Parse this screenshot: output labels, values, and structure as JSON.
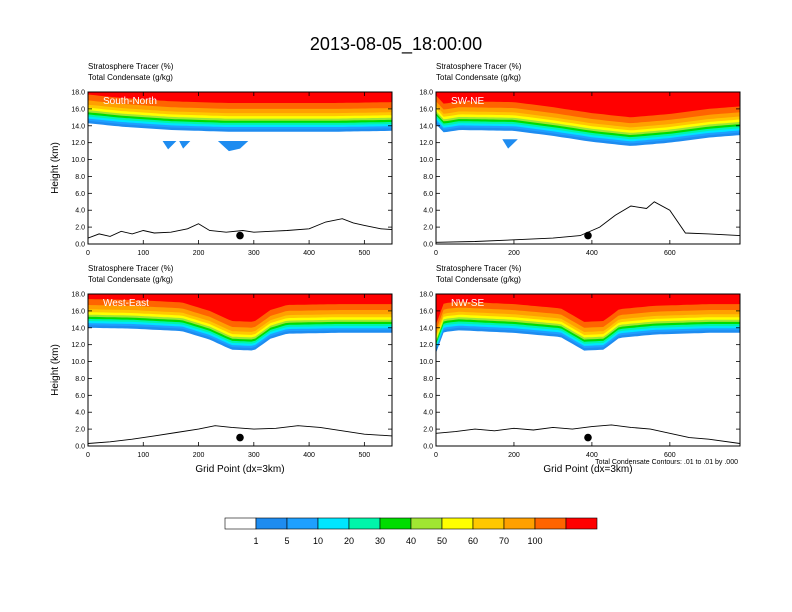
{
  "figure_title": "2013-08-05_18:00:00",
  "footnote": "Total Condensate Contours: .01 to .01 by .000",
  "colors": {
    "palette": [
      "#ffffff",
      "#1e8cf0",
      "#1ea0ff",
      "#00e6ff",
      "#00f5aa",
      "#00dc00",
      "#a0e632",
      "#ffff00",
      "#ffc800",
      "#ffa000",
      "#ff6400",
      "#ff0000"
    ]
  },
  "colorbar": {
    "labels": [
      "1",
      "5",
      "10",
      "20",
      "30",
      "40",
      "50",
      "60",
      "70",
      "100"
    ]
  },
  "chart_data": [
    {
      "type": "contour",
      "id": "p1",
      "header_line1": "Stratosphere Tracer   (%)",
      "header_line2": "Total Condensate   (g/kg)",
      "panel_label": "South-North",
      "ylabel": "Height (km)",
      "xlabel": "",
      "xlim": [
        0,
        550
      ],
      "ylim": [
        0,
        18
      ],
      "xticks": [
        "0",
        "100",
        "200",
        "300",
        "400",
        "500"
      ],
      "xtick_values": [
        0,
        100,
        200,
        300,
        400,
        500
      ],
      "yticks": [
        "0.0",
        "2.0",
        "4.0",
        "6.0",
        "8.0",
        "10.0",
        "12.0",
        "14.0",
        "16.0",
        "18.0"
      ],
      "tropopause_km": [
        [
          0,
          14.3
        ],
        [
          60,
          13.9
        ],
        [
          150,
          13.5
        ],
        [
          250,
          13.3
        ],
        [
          350,
          13.3
        ],
        [
          450,
          13.3
        ],
        [
          550,
          13.4
        ]
      ],
      "blue_patches": [
        [
          [
            235,
            12.2
          ],
          [
            255,
            11.0
          ],
          [
            275,
            11.3
          ],
          [
            290,
            12.2
          ]
        ],
        [
          [
            135,
            12.2
          ],
          [
            145,
            11.2
          ],
          [
            160,
            12.2
          ]
        ],
        [
          [
            165,
            12.2
          ],
          [
            172,
            11.3
          ],
          [
            185,
            12.2
          ]
        ]
      ],
      "terrain_km": [
        [
          0,
          0.7
        ],
        [
          20,
          1.2
        ],
        [
          40,
          0.9
        ],
        [
          60,
          1.5
        ],
        [
          80,
          1.2
        ],
        [
          100,
          1.6
        ],
        [
          120,
          1.3
        ],
        [
          150,
          1.4
        ],
        [
          180,
          1.8
        ],
        [
          200,
          2.4
        ],
        [
          220,
          1.6
        ],
        [
          250,
          1.4
        ],
        [
          280,
          1.6
        ],
        [
          300,
          1.4
        ],
        [
          330,
          1.5
        ],
        [
          360,
          1.6
        ],
        [
          400,
          1.8
        ],
        [
          430,
          2.6
        ],
        [
          460,
          3.0
        ],
        [
          480,
          2.5
        ],
        [
          500,
          2.2
        ],
        [
          530,
          1.8
        ],
        [
          550,
          1.7
        ]
      ],
      "marker": [
        275,
        1.0
      ]
    },
    {
      "type": "contour",
      "id": "p2",
      "header_line1": "Stratosphere Tracer   (%)",
      "header_line2": "Total Condensate   (g/kg)",
      "panel_label": "SW-NE",
      "ylabel": "",
      "xlabel": "",
      "xlim": [
        0,
        780
      ],
      "ylim": [
        0,
        18
      ],
      "xticks": [
        "0",
        "200",
        "400",
        "600"
      ],
      "xtick_values": [
        0,
        200,
        400,
        600
      ],
      "yticks": [
        "0.0",
        "2.0",
        "4.0",
        "6.0",
        "8.0",
        "10.0",
        "12.0",
        "14.0",
        "16.0",
        "18.0"
      ],
      "tropopause_km": [
        [
          0,
          14.2
        ],
        [
          20,
          13.2
        ],
        [
          60,
          13.5
        ],
        [
          200,
          13.4
        ],
        [
          300,
          12.8
        ],
        [
          400,
          12.1
        ],
        [
          500,
          11.6
        ],
        [
          600,
          12.0
        ],
        [
          700,
          12.6
        ],
        [
          780,
          12.9
        ]
      ],
      "blue_patches": [
        [
          [
            170,
            12.4
          ],
          [
            185,
            11.3
          ],
          [
            210,
            12.4
          ]
        ]
      ],
      "terrain_km": [
        [
          0,
          0.2
        ],
        [
          100,
          0.3
        ],
        [
          200,
          0.5
        ],
        [
          300,
          0.7
        ],
        [
          370,
          1.0
        ],
        [
          420,
          2.0
        ],
        [
          460,
          3.4
        ],
        [
          500,
          4.5
        ],
        [
          540,
          4.2
        ],
        [
          560,
          5.0
        ],
        [
          600,
          4.0
        ],
        [
          640,
          1.3
        ],
        [
          700,
          1.2
        ],
        [
          780,
          1.0
        ]
      ],
      "marker": [
        390,
        1.0
      ]
    },
    {
      "type": "contour",
      "id": "p3",
      "header_line1": "Stratosphere Tracer   (%)",
      "header_line2": "Total Condensate   (g/kg)",
      "panel_label": "West-East",
      "ylabel": "Height (km)",
      "xlabel": "Grid Point (dx=3km)",
      "xlim": [
        0,
        550
      ],
      "ylim": [
        0,
        18
      ],
      "xticks": [
        "0",
        "100",
        "200",
        "300",
        "400",
        "500"
      ],
      "xtick_values": [
        0,
        100,
        200,
        300,
        400,
        500
      ],
      "yticks": [
        "0.0",
        "2.0",
        "4.0",
        "6.0",
        "8.0",
        "10.0",
        "12.0",
        "14.0",
        "16.0",
        "18.0"
      ],
      "tropopause_km": [
        [
          0,
          14.0
        ],
        [
          80,
          13.9
        ],
        [
          170,
          13.6
        ],
        [
          220,
          12.6
        ],
        [
          260,
          11.4
        ],
        [
          300,
          11.3
        ],
        [
          330,
          12.7
        ],
        [
          360,
          13.3
        ],
        [
          450,
          13.4
        ],
        [
          550,
          13.4
        ]
      ],
      "blue_patches": [],
      "terrain_km": [
        [
          0,
          0.3
        ],
        [
          40,
          0.5
        ],
        [
          80,
          0.8
        ],
        [
          120,
          1.2
        ],
        [
          160,
          1.6
        ],
        [
          200,
          2.0
        ],
        [
          230,
          2.4
        ],
        [
          260,
          2.2
        ],
        [
          300,
          2.0
        ],
        [
          340,
          2.1
        ],
        [
          380,
          2.4
        ],
        [
          420,
          2.2
        ],
        [
          460,
          1.8
        ],
        [
          500,
          1.4
        ],
        [
          550,
          1.2
        ]
      ],
      "marker": [
        275,
        1.0
      ]
    },
    {
      "type": "contour",
      "id": "p4",
      "header_line1": "Stratosphere Tracer   (%)",
      "header_line2": "Total Condensate   (g/kg)",
      "panel_label": "NW-SE",
      "ylabel": "",
      "xlabel": "Grid Point (dx=3km)",
      "xlim": [
        0,
        780
      ],
      "ylim": [
        0,
        18
      ],
      "xticks": [
        "0",
        "200",
        "400",
        "600"
      ],
      "xtick_values": [
        0,
        200,
        400,
        600
      ],
      "yticks": [
        "0.0",
        "2.0",
        "4.0",
        "6.0",
        "8.0",
        "10.0",
        "12.0",
        "14.0",
        "16.0",
        "18.0"
      ],
      "tropopause_km": [
        [
          0,
          11.0
        ],
        [
          20,
          13.5
        ],
        [
          60,
          13.7
        ],
        [
          200,
          13.4
        ],
        [
          320,
          12.9
        ],
        [
          380,
          11.3
        ],
        [
          430,
          11.4
        ],
        [
          470,
          12.8
        ],
        [
          560,
          13.2
        ],
        [
          700,
          13.4
        ],
        [
          780,
          13.4
        ]
      ],
      "blue_patches": [],
      "terrain_km": [
        [
          0,
          1.5
        ],
        [
          50,
          1.7
        ],
        [
          100,
          2.0
        ],
        [
          150,
          1.8
        ],
        [
          200,
          2.1
        ],
        [
          250,
          1.9
        ],
        [
          300,
          2.2
        ],
        [
          350,
          2.0
        ],
        [
          400,
          2.3
        ],
        [
          450,
          2.5
        ],
        [
          500,
          2.2
        ],
        [
          550,
          2.0
        ],
        [
          600,
          1.5
        ],
        [
          650,
          1.0
        ],
        [
          700,
          0.8
        ],
        [
          780,
          0.3
        ]
      ],
      "marker": [
        390,
        1.0
      ]
    }
  ]
}
